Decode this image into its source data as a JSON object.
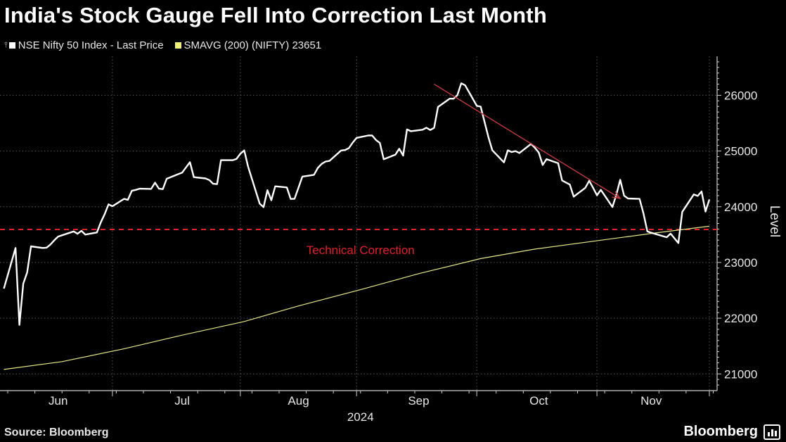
{
  "title": "India's Stock Gauge Fell Into Correction Last Month",
  "legend": {
    "series1": "NSE Nifty 50 Index - Last Price",
    "series2": "SMAVG (200) (NIFTY) 23651"
  },
  "source": "Source: Bloomberg",
  "brand": "Bloomberg",
  "chart_data": {
    "type": "line",
    "title": "India's Stock Gauge Fell Into Correction Last Month",
    "ylabel": "Level",
    "xlabel": "2024",
    "ylim": [
      20700,
      26700
    ],
    "yticks": [
      21000,
      22000,
      23000,
      24000,
      25000,
      26000
    ],
    "xtick_labels": [
      "Jun",
      "Jul",
      "Aug",
      "Sep",
      "Oct",
      "Nov"
    ],
    "year_label": "2024",
    "grid": true,
    "legend_position": "top-left",
    "colors": {
      "price": "#ffffff",
      "sma": "#e6e68a",
      "correction": "#e0202a",
      "arrow": "#c23a40",
      "grid": "#555555"
    },
    "annotation": {
      "text": "Technical Correction",
      "level": 23592
    },
    "arrow": {
      "from": [
        "2024-09-19",
        26200
      ],
      "to": [
        "2024-11-06",
        24150
      ]
    },
    "series": [
      {
        "name": "NSE Nifty 50 Index - Last Price",
        "points": [
          [
            "2024-05-31",
            22530
          ],
          [
            "2024-06-03",
            23260
          ],
          [
            "2024-06-04",
            21880
          ],
          [
            "2024-06-05",
            22620
          ],
          [
            "2024-06-06",
            22820
          ],
          [
            "2024-06-07",
            23290
          ],
          [
            "2024-06-10",
            23260
          ],
          [
            "2024-06-11",
            23265
          ],
          [
            "2024-06-12",
            23322
          ],
          [
            "2024-06-13",
            23398
          ],
          [
            "2024-06-14",
            23465
          ],
          [
            "2024-06-18",
            23557
          ],
          [
            "2024-06-19",
            23516
          ],
          [
            "2024-06-20",
            23567
          ],
          [
            "2024-06-21",
            23501
          ],
          [
            "2024-06-24",
            23538
          ],
          [
            "2024-06-25",
            23721
          ],
          [
            "2024-06-26",
            23868
          ],
          [
            "2024-06-27",
            24044
          ],
          [
            "2024-06-28",
            24010
          ],
          [
            "2024-07-01",
            24141
          ],
          [
            "2024-07-02",
            24124
          ],
          [
            "2024-07-03",
            24286
          ],
          [
            "2024-07-04",
            24302
          ],
          [
            "2024-07-05",
            24324
          ],
          [
            "2024-07-08",
            24320
          ],
          [
            "2024-07-09",
            24433
          ],
          [
            "2024-07-10",
            24324
          ],
          [
            "2024-07-11",
            24316
          ],
          [
            "2024-07-12",
            24502
          ],
          [
            "2024-07-15",
            24586
          ],
          [
            "2024-07-16",
            24613
          ],
          [
            "2024-07-18",
            24800
          ],
          [
            "2024-07-19",
            24531
          ],
          [
            "2024-07-22",
            24509
          ],
          [
            "2024-07-23",
            24479
          ],
          [
            "2024-07-24",
            24413
          ],
          [
            "2024-07-25",
            24406
          ],
          [
            "2024-07-26",
            24835
          ],
          [
            "2024-07-29",
            24836
          ],
          [
            "2024-07-30",
            24857
          ],
          [
            "2024-07-31",
            24951
          ],
          [
            "2024-08-01",
            25011
          ],
          [
            "2024-08-02",
            24718
          ],
          [
            "2024-08-05",
            24055
          ],
          [
            "2024-08-06",
            23993
          ],
          [
            "2024-08-07",
            24297
          ],
          [
            "2024-08-08",
            24117
          ],
          [
            "2024-08-09",
            24367
          ],
          [
            "2024-08-12",
            24347
          ],
          [
            "2024-08-13",
            24139
          ],
          [
            "2024-08-14",
            24144
          ],
          [
            "2024-08-16",
            24541
          ],
          [
            "2024-08-19",
            24573
          ],
          [
            "2024-08-20",
            24698
          ],
          [
            "2024-08-21",
            24770
          ],
          [
            "2024-08-22",
            24811
          ],
          [
            "2024-08-23",
            24823
          ],
          [
            "2024-08-26",
            25010
          ],
          [
            "2024-08-27",
            25017
          ],
          [
            "2024-08-28",
            25052
          ],
          [
            "2024-08-29",
            25151
          ],
          [
            "2024-08-30",
            25236
          ],
          [
            "2024-09-02",
            25279
          ],
          [
            "2024-09-03",
            25279
          ],
          [
            "2024-09-04",
            25198
          ],
          [
            "2024-09-05",
            25145
          ],
          [
            "2024-09-06",
            24852
          ],
          [
            "2024-09-09",
            24936
          ],
          [
            "2024-09-10",
            25041
          ],
          [
            "2024-09-11",
            24918
          ],
          [
            "2024-09-12",
            25388
          ],
          [
            "2024-09-13",
            25356
          ],
          [
            "2024-09-16",
            25383
          ],
          [
            "2024-09-17",
            25418
          ],
          [
            "2024-09-18",
            25377
          ],
          [
            "2024-09-19",
            25415
          ],
          [
            "2024-09-20",
            25791
          ],
          [
            "2024-09-23",
            25939
          ],
          [
            "2024-09-24",
            25940
          ],
          [
            "2024-09-25",
            26004
          ],
          [
            "2024-09-26",
            26216
          ],
          [
            "2024-09-27",
            26179
          ],
          [
            "2024-09-30",
            25811
          ],
          [
            "2024-10-01",
            25797
          ],
          [
            "2024-10-03",
            25250
          ],
          [
            "2024-10-04",
            25015
          ],
          [
            "2024-10-07",
            24796
          ],
          [
            "2024-10-08",
            25013
          ],
          [
            "2024-10-09",
            24982
          ],
          [
            "2024-10-10",
            24998
          ],
          [
            "2024-10-11",
            24964
          ],
          [
            "2024-10-14",
            25128
          ],
          [
            "2024-10-15",
            25057
          ],
          [
            "2024-10-16",
            24971
          ],
          [
            "2024-10-17",
            24750
          ],
          [
            "2024-10-18",
            24854
          ],
          [
            "2024-10-21",
            24781
          ],
          [
            "2024-10-22",
            24472
          ],
          [
            "2024-10-23",
            24435
          ],
          [
            "2024-10-24",
            24399
          ],
          [
            "2024-10-25",
            24181
          ],
          [
            "2024-10-28",
            24339
          ],
          [
            "2024-10-29",
            24467
          ],
          [
            "2024-10-30",
            24341
          ],
          [
            "2024-10-31",
            24205
          ],
          [
            "2024-11-01",
            24304
          ],
          [
            "2024-11-04",
            23995
          ],
          [
            "2024-11-05",
            24213
          ],
          [
            "2024-11-06",
            24484
          ],
          [
            "2024-11-07",
            24199
          ],
          [
            "2024-11-08",
            24148
          ],
          [
            "2024-11-11",
            24141
          ],
          [
            "2024-11-12",
            23883
          ],
          [
            "2024-11-13",
            23559
          ],
          [
            "2024-11-14",
            23533
          ],
          [
            "2024-11-18",
            23453
          ],
          [
            "2024-11-19",
            23518
          ],
          [
            "2024-11-21",
            23349
          ],
          [
            "2024-11-22",
            23907
          ],
          [
            "2024-11-25",
            24222
          ],
          [
            "2024-11-26",
            24194
          ],
          [
            "2024-11-27",
            24275
          ],
          [
            "2024-11-28",
            23914
          ],
          [
            "2024-11-29",
            24131
          ]
        ]
      },
      {
        "name": "SMAVG (200) (NIFTY) 23651",
        "points": [
          [
            "2024-05-31",
            21080
          ],
          [
            "2024-06-15",
            21220
          ],
          [
            "2024-07-01",
            21450
          ],
          [
            "2024-07-15",
            21680
          ],
          [
            "2024-08-01",
            21940
          ],
          [
            "2024-08-15",
            22220
          ],
          [
            "2024-09-01",
            22530
          ],
          [
            "2024-09-15",
            22800
          ],
          [
            "2024-10-01",
            23070
          ],
          [
            "2024-10-15",
            23240
          ],
          [
            "2024-11-01",
            23400
          ],
          [
            "2024-11-15",
            23530
          ],
          [
            "2024-11-29",
            23651
          ]
        ]
      }
    ]
  }
}
